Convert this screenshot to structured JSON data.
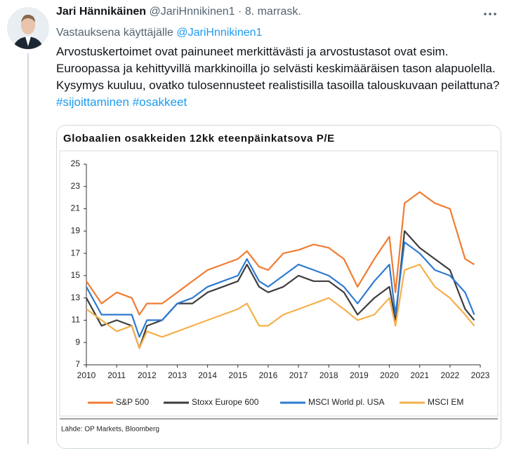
{
  "tweet": {
    "author": "Jari Hännikäinen",
    "handle": "@JariHnnikinen1",
    "separator": "·",
    "date": "8. marrask.",
    "reply_label": "Vastauksena käyttäjälle",
    "reply_to": "@JariHnnikinen1",
    "body": "Arvostuskertoimet ovat painuneet merkittävästi ja arvostustasot ovat esim. Euroopassa ja kehittyvillä markkinoilla jo selvästi keskimääräisen tason alapuolella. Kysymys kuuluu, ovatko tulosennusteet realistisilla tasoilla talouskuvaan peilattuna?",
    "hashtags": [
      "#sijoittaminen",
      "#osakkeet"
    ]
  },
  "chart_data": {
    "type": "line",
    "title": "Globaalien osakkeiden 12kk eteenpäinkatsova P/E",
    "source": "Lähde: OP Markets, Bloomberg",
    "x": [
      2010,
      2010.5,
      2011,
      2011.5,
      2011.75,
      2012,
      2012.5,
      2013,
      2013.5,
      2014,
      2014.5,
      2015,
      2015.3,
      2015.7,
      2016,
      2016.5,
      2017,
      2017.5,
      2018,
      2018.5,
      2018.95,
      2019.5,
      2020,
      2020.2,
      2020.5,
      2021,
      2021.5,
      2022,
      2022.5,
      2022.8
    ],
    "series": [
      {
        "name": "S&P 500",
        "color": "#f07c32",
        "values": [
          14.5,
          12.5,
          13.5,
          13,
          11.5,
          12.5,
          12.5,
          13.5,
          14.5,
          15.5,
          16,
          16.5,
          17.2,
          15.8,
          15.5,
          17,
          17.3,
          17.8,
          17.5,
          16.5,
          14,
          16.5,
          18.5,
          13.5,
          21.5,
          22.5,
          21.5,
          21,
          16.5,
          16
        ]
      },
      {
        "name": "Stoxx Europe 600",
        "color": "#3d3d3d",
        "values": [
          13,
          10.5,
          11,
          10.5,
          8.5,
          10.5,
          11,
          12.5,
          12.5,
          13.5,
          14,
          14.5,
          16,
          14,
          13.5,
          14,
          15,
          14.5,
          14.5,
          13.5,
          11.5,
          13,
          14,
          11,
          19,
          17.5,
          16.5,
          15.5,
          12,
          11
        ]
      },
      {
        "name": "MSCI World pl. USA",
        "color": "#2e7ad1",
        "values": [
          14,
          11.5,
          11.5,
          11.5,
          9.5,
          11,
          11,
          12.5,
          13,
          14,
          14.5,
          15,
          16.5,
          14.5,
          14,
          15,
          16,
          15.5,
          15,
          14,
          12.5,
          14.5,
          16,
          11.5,
          18,
          17,
          15.5,
          15,
          13.5,
          11.5
        ]
      },
      {
        "name": "MSCI EM",
        "color": "#f5b04a",
        "values": [
          12,
          11,
          10,
          10.5,
          8.5,
          10,
          9.5,
          10,
          10.5,
          11,
          11.5,
          12,
          12.5,
          10.5,
          10.5,
          11.5,
          12,
          12.5,
          13,
          12,
          11,
          11.5,
          13,
          10.5,
          15.5,
          16,
          14,
          13,
          11.5,
          10.5
        ]
      }
    ],
    "xlim": [
      2010,
      2023
    ],
    "xticks": [
      2010,
      2011,
      2012,
      2013,
      2014,
      2015,
      2016,
      2017,
      2018,
      2019,
      2020,
      2021,
      2022,
      2023
    ],
    "ylim": [
      7,
      25
    ],
    "yticks": [
      7,
      9,
      11,
      13,
      15,
      17,
      19,
      21,
      23,
      25
    ],
    "grid": false
  }
}
